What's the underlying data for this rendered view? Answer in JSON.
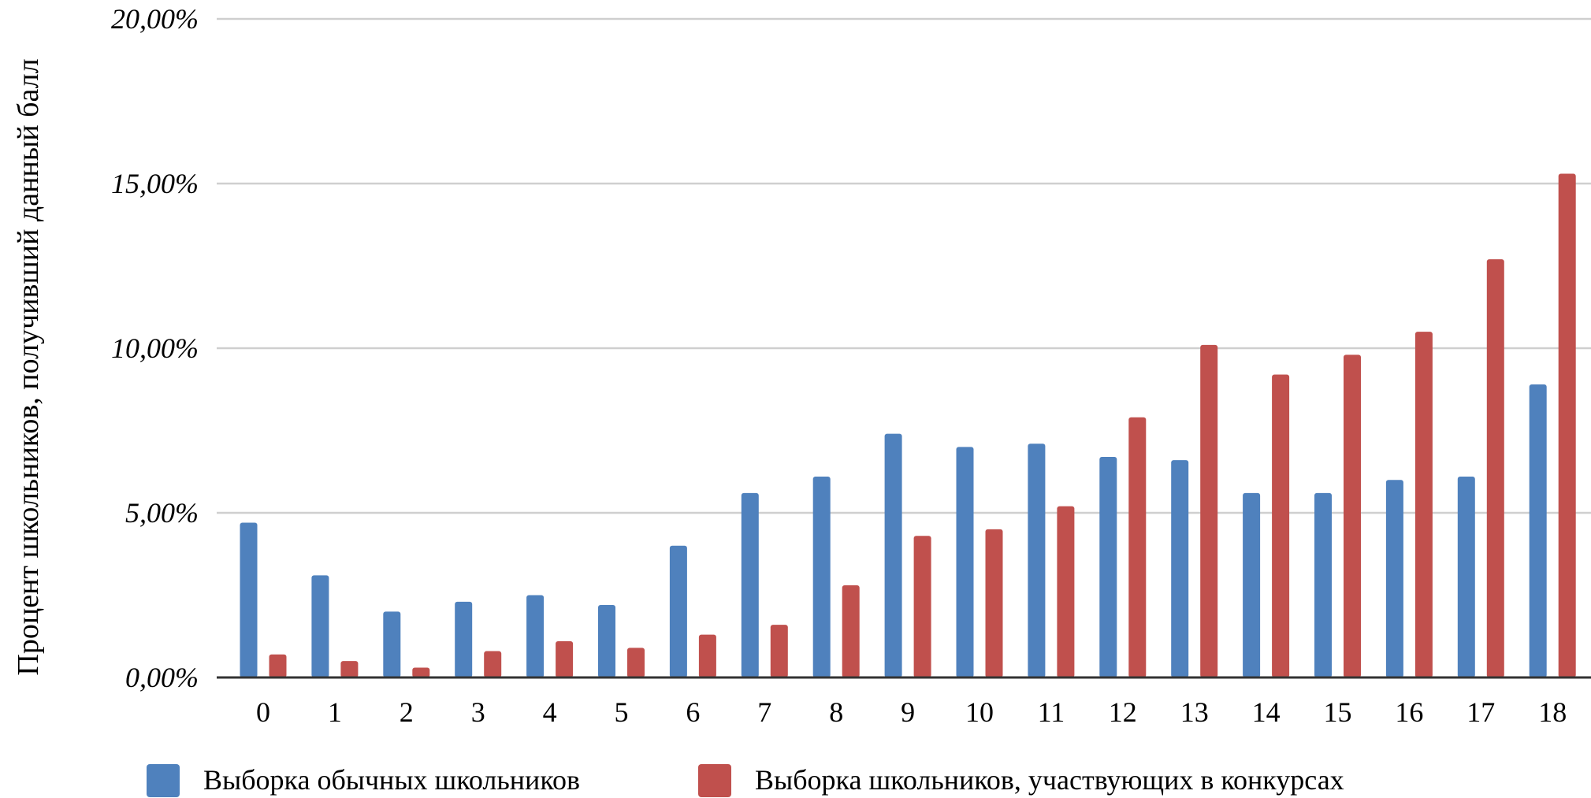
{
  "chart_data": {
    "type": "bar",
    "ylabel": "Процент школьников, получивший данный балл",
    "ylim": [
      0,
      20
    ],
    "y_ticks": [
      {
        "value": 0,
        "label": "0,00%"
      },
      {
        "value": 5,
        "label": "5,00%"
      },
      {
        "value": 10,
        "label": "10,00%"
      },
      {
        "value": 15,
        "label": "15,00%"
      },
      {
        "value": 20,
        "label": "20,00%"
      }
    ],
    "grid": true,
    "legend_position": "bottom",
    "categories": [
      "0",
      "1",
      "2",
      "3",
      "4",
      "5",
      "6",
      "7",
      "8",
      "9",
      "10",
      "11",
      "12",
      "13",
      "14",
      "15",
      "16",
      "17",
      "18"
    ],
    "series": [
      {
        "name": "Выборка обычных школьников",
        "color": "#4f81bd",
        "values": [
          4.7,
          3.1,
          2.0,
          2.3,
          2.5,
          2.2,
          4.0,
          5.6,
          6.1,
          7.4,
          7.0,
          7.1,
          6.7,
          6.6,
          5.6,
          5.6,
          6.0,
          6.1,
          8.9
        ]
      },
      {
        "name": "Выборка школьников, участвующих в конкурсах",
        "color": "#c0504d",
        "values": [
          0.7,
          0.5,
          0.3,
          0.8,
          1.1,
          0.9,
          1.3,
          1.6,
          2.8,
          4.3,
          4.5,
          5.2,
          7.9,
          10.1,
          9.2,
          9.8,
          10.5,
          12.7,
          15.3
        ]
      }
    ]
  }
}
